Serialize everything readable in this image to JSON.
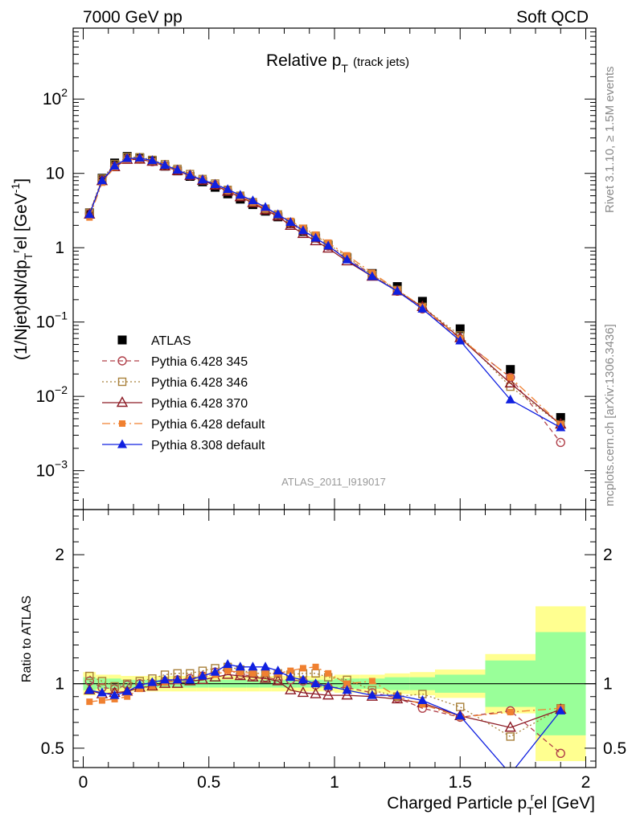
{
  "header": {
    "left": "7000 GeV pp",
    "right": "Soft QCD"
  },
  "side_labels": {
    "rivet": "Rivet 3.1.10, ≥ 1.5M events",
    "mcplots": "mcplots.cern.ch [arXiv:1306.3436]"
  },
  "watermark": "ATLAS_2011_I919017",
  "chart_data": [
    {
      "type": "line",
      "title": "Relative p",
      "title_sub": "T",
      "title_note": "(track jets)",
      "ylabel": "(1/Njet)dN/dp",
      "ylabel_sub": "T",
      "ylabel_sup": "r",
      "ylabel_tail": "el [GeV",
      "ylabel_tail_sup": "-1",
      "ylabel_end": "]",
      "yscale": "log",
      "ylim": [
        0.0003,
        900
      ],
      "xlim": [
        -0.04,
        2.04
      ],
      "y_ticks": [
        {
          "value": 0.001,
          "base": "10",
          "exp": "−3"
        },
        {
          "value": 0.01,
          "base": "10",
          "exp": "−2"
        },
        {
          "value": 0.1,
          "base": "10",
          "exp": "−1"
        },
        {
          "value": 1,
          "base": "1",
          "exp": ""
        },
        {
          "value": 10,
          "base": "10",
          "exp": ""
        },
        {
          "value": 100,
          "base": "10",
          "exp": "2"
        }
      ],
      "legend_position": "bottom-left",
      "x": [
        0.025,
        0.075,
        0.125,
        0.175,
        0.225,
        0.275,
        0.325,
        0.375,
        0.425,
        0.475,
        0.525,
        0.575,
        0.625,
        0.675,
        0.725,
        0.775,
        0.825,
        0.875,
        0.925,
        0.975,
        1.05,
        1.15,
        1.25,
        1.35,
        1.5,
        1.7,
        1.9
      ],
      "series": [
        {
          "name": "ATLAS",
          "color": "#000000",
          "marker": "square-filled",
          "dash": "none",
          "values": [
            2.95,
            8.6,
            13.8,
            16.9,
            16.2,
            14.8,
            12.5,
            10.8,
            9.1,
            7.7,
            6.5,
            5.3,
            4.5,
            3.8,
            3.1,
            2.6,
            2.1,
            1.65,
            1.35,
            1.08,
            0.73,
            0.45,
            0.3,
            0.19,
            0.081,
            0.023,
            0.0052
          ]
        },
        {
          "name": "Pythia 6.428 345",
          "color": "#b0404a",
          "marker": "circle-open",
          "dash": "6,4",
          "values": [
            2.9,
            8.1,
            12.5,
            15.8,
            15.6,
            14.4,
            12.6,
            11.0,
            9.3,
            8.1,
            7.0,
            5.9,
            4.9,
            4.1,
            3.3,
            2.7,
            2.1,
            1.7,
            1.35,
            1.05,
            0.72,
            0.43,
            0.26,
            0.15,
            0.06,
            0.018,
            0.0024
          ]
        },
        {
          "name": "Pythia 6.428 346",
          "color": "#a8803a",
          "marker": "square-open",
          "dash": "2,3",
          "values": [
            2.95,
            8.5,
            13.3,
            16.6,
            16.5,
            15.2,
            13.3,
            11.5,
            9.8,
            8.4,
            7.3,
            6.0,
            5.0,
            4.1,
            3.35,
            2.8,
            2.2,
            1.8,
            1.45,
            1.12,
            0.75,
            0.43,
            0.27,
            0.16,
            0.066,
            0.0135,
            0.0042
          ]
        },
        {
          "name": "Pythia 6.428 370",
          "color": "#8c1a24",
          "marker": "triangle-open",
          "dash": "none",
          "values": [
            2.8,
            7.9,
            12.2,
            15.3,
            15.4,
            14.4,
            12.5,
            10.8,
            9.3,
            8.0,
            6.9,
            5.7,
            4.8,
            4.0,
            3.2,
            2.65,
            1.98,
            1.54,
            1.23,
            0.98,
            0.66,
            0.41,
            0.26,
            0.16,
            0.061,
            0.015,
            0.0042
          ]
        },
        {
          "name": "Pythia 6.428 default",
          "color": "#f08030",
          "marker": "square-filled-small",
          "dash": "10,4,2,4",
          "values": [
            2.55,
            7.5,
            12.1,
            15.3,
            15.5,
            14.5,
            12.7,
            11.0,
            9.4,
            8.2,
            7.0,
            5.9,
            4.9,
            4.1,
            3.35,
            2.8,
            2.3,
            1.85,
            1.5,
            1.17,
            0.79,
            0.46,
            0.27,
            0.16,
            0.06,
            0.018,
            0.0042
          ]
        },
        {
          "name": "Pythia 8.308 default",
          "color": "#1020e0",
          "marker": "triangle-filled",
          "dash": "none",
          "values": [
            2.8,
            8.0,
            12.6,
            15.9,
            16.1,
            14.9,
            12.9,
            11.1,
            9.4,
            8.2,
            7.1,
            6.1,
            5.1,
            4.3,
            3.5,
            2.8,
            2.2,
            1.7,
            1.35,
            1.06,
            0.69,
            0.41,
            0.26,
            0.15,
            0.056,
            0.009,
            0.0038
          ]
        }
      ]
    },
    {
      "type": "line",
      "ylabel": "Ratio to ATLAS",
      "xlabel": "Charged Particle p",
      "xlabel_sub": "T",
      "xlabel_sup": "r",
      "xlabel_tail": "el [GeV]",
      "ylim": [
        0.35,
        2.35
      ],
      "xlim": [
        -0.04,
        2.04
      ],
      "y_ticks": [
        0.5,
        1,
        2
      ],
      "y_tick_labels": [
        "0.5",
        "1",
        "2"
      ],
      "x_ticks": [
        0,
        0.5,
        1,
        1.5,
        2
      ],
      "x_tick_labels": [
        "0",
        "0.5",
        "1",
        "1.5",
        "2"
      ],
      "reference_line": 1,
      "bands": {
        "x_edges": [
          0.0,
          0.05,
          0.1,
          0.15,
          0.2,
          0.25,
          0.3,
          0.35,
          0.4,
          0.45,
          0.5,
          0.55,
          0.6,
          0.65,
          0.7,
          0.75,
          0.8,
          0.85,
          0.9,
          0.95,
          1.0,
          1.1,
          1.2,
          1.3,
          1.4,
          1.6,
          1.8,
          2.0
        ],
        "yellow_half": [
          0.09,
          0.07,
          0.07,
          0.06,
          0.06,
          0.06,
          0.06,
          0.06,
          0.06,
          0.06,
          0.06,
          0.06,
          0.06,
          0.06,
          0.06,
          0.06,
          0.06,
          0.06,
          0.06,
          0.06,
          0.07,
          0.07,
          0.08,
          0.09,
          0.11,
          0.23,
          0.6
        ],
        "green_half": [
          0.05,
          0.04,
          0.04,
          0.03,
          0.03,
          0.03,
          0.03,
          0.03,
          0.03,
          0.03,
          0.03,
          0.03,
          0.03,
          0.03,
          0.03,
          0.03,
          0.03,
          0.03,
          0.03,
          0.03,
          0.04,
          0.04,
          0.05,
          0.05,
          0.07,
          0.18,
          0.4
        ]
      },
      "x": [
        0.025,
        0.075,
        0.125,
        0.175,
        0.225,
        0.275,
        0.325,
        0.375,
        0.425,
        0.475,
        0.525,
        0.575,
        0.625,
        0.675,
        0.725,
        0.775,
        0.825,
        0.875,
        0.925,
        0.975,
        1.05,
        1.15,
        1.25,
        1.35,
        1.5,
        1.7,
        1.9
      ],
      "series": [
        {
          "name": "Pythia 6.428 345",
          "color": "#b0404a",
          "marker": "circle-open",
          "dash": "6,4",
          "values": [
            1.02,
            0.97,
            0.96,
            0.99,
            1.0,
            1.0,
            1.02,
            1.03,
            1.04,
            1.06,
            1.09,
            1.11,
            1.07,
            1.06,
            1.05,
            1.03,
            1.03,
            1.02,
            0.99,
            0.97,
            0.97,
            0.93,
            0.89,
            0.81,
            0.74,
            0.79,
            0.46
          ]
        },
        {
          "name": "Pythia 6.428 346",
          "color": "#a8803a",
          "marker": "square-open",
          "dash": "2,3",
          "values": [
            1.06,
            1.02,
            0.98,
            1.0,
            1.02,
            1.04,
            1.07,
            1.08,
            1.08,
            1.1,
            1.12,
            1.13,
            1.11,
            1.08,
            1.08,
            1.08,
            1.07,
            1.08,
            1.08,
            1.05,
            1.03,
            0.95,
            0.9,
            0.92,
            0.82,
            0.59,
            0.81
          ]
        },
        {
          "name": "Pythia 6.428 370",
          "color": "#8c1a24",
          "marker": "triangle-open",
          "dash": "none",
          "values": [
            0.95,
            0.92,
            0.93,
            0.94,
            0.97,
            0.98,
            1.0,
            1.0,
            1.02,
            1.03,
            1.05,
            1.07,
            1.06,
            1.05,
            1.04,
            1.02,
            0.95,
            0.93,
            0.92,
            0.91,
            0.91,
            0.9,
            0.88,
            0.85,
            0.75,
            0.66,
            0.8
          ]
        },
        {
          "name": "Pythia 6.428 default",
          "color": "#f08030",
          "marker": "square-filled-small",
          "dash": "10,4,2,4",
          "values": [
            0.86,
            0.87,
            0.88,
            0.9,
            0.96,
            0.98,
            1.01,
            1.02,
            1.03,
            1.06,
            1.07,
            1.1,
            1.09,
            1.08,
            1.08,
            1.08,
            1.1,
            1.12,
            1.13,
            1.08,
            1.0,
            1.02,
            0.9,
            0.84,
            0.74,
            0.78,
            0.81
          ]
        },
        {
          "name": "Pythia 8.308 default",
          "color": "#1020e0",
          "marker": "triangle-filled",
          "dash": "none",
          "values": [
            0.95,
            0.93,
            0.91,
            0.94,
            0.99,
            1.01,
            1.03,
            1.03,
            1.03,
            1.06,
            1.09,
            1.15,
            1.13,
            1.13,
            1.13,
            1.1,
            1.05,
            1.03,
            1.0,
            0.98,
            0.95,
            0.91,
            0.91,
            0.87,
            0.75,
            0.3,
            0.79
          ]
        }
      ]
    }
  ]
}
